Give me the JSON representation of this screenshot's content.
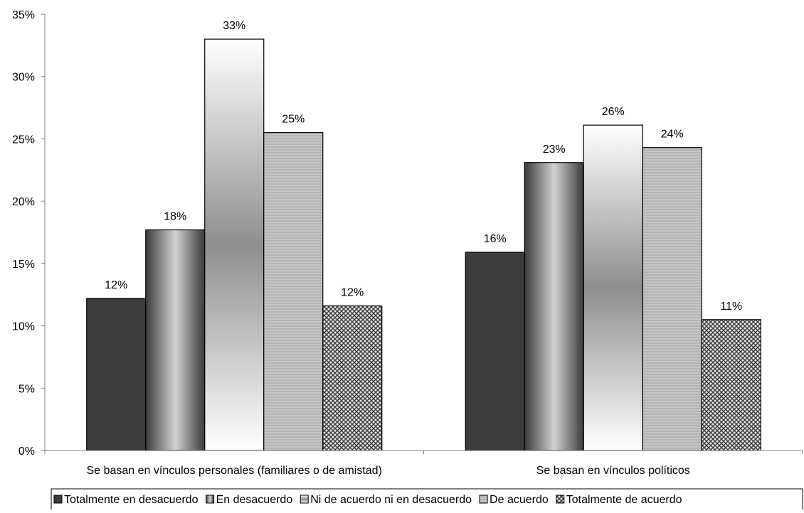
{
  "chart_data": {
    "type": "bar",
    "categories": [
      "Se basan en vínculos personales (familiares o de amistad)",
      "Se basan en vínculos políticos"
    ],
    "series": [
      {
        "name": "Totalmente en desacuerdo",
        "values": [
          12.2,
          15.9
        ],
        "labels": [
          "12%",
          "16%"
        ],
        "fill": "dark-solid"
      },
      {
        "name": "En desacuerdo",
        "values": [
          17.7,
          23.1
        ],
        "labels": [
          "18%",
          "23%"
        ],
        "fill": "dark-gradient"
      },
      {
        "name": "Ni de acuerdo ni en desacuerdo",
        "values": [
          33.0,
          26.1
        ],
        "labels": [
          "33%",
          "26%"
        ],
        "fill": "light-gradient"
      },
      {
        "name": "De acuerdo",
        "values": [
          25.5,
          24.3
        ],
        "labels": [
          "25%",
          "24%"
        ],
        "fill": "gray-lines"
      },
      {
        "name": "Totalmente de acuerdo",
        "values": [
          11.6,
          10.5
        ],
        "labels": [
          "12%",
          "11%"
        ],
        "fill": "crosshatch"
      }
    ],
    "title": "",
    "xlabel": "",
    "ylabel": "",
    "ylim": [
      0,
      35
    ],
    "yticks": [
      "0%",
      "5%",
      "10%",
      "15%",
      "20%",
      "25%",
      "30%",
      "35%"
    ],
    "grid": false,
    "legend_position": "bottom"
  },
  "colors": {
    "dark": "#3c3c3c",
    "mid": "#8c8c8c",
    "light": "#bdbdbd",
    "axis": "#808080",
    "border": "#000000"
  }
}
